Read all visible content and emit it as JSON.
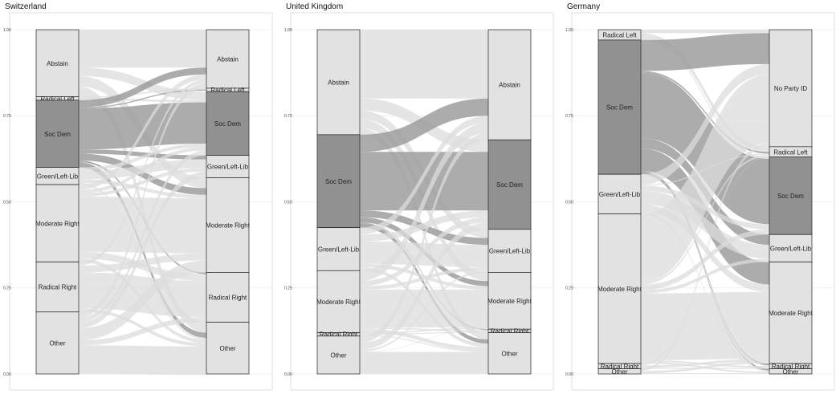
{
  "chart_data": [
    {
      "type": "alluvial",
      "title": "Switzerland",
      "ylim": [
        0,
        1
      ],
      "yticks": [
        "0.00",
        "0.25",
        "0.50",
        "0.75",
        "1.00"
      ],
      "grid": true,
      "left_axis": [
        {
          "label": "Abstain",
          "share": 0.195
        },
        {
          "label": "Radical Left",
          "share": 0.01
        },
        {
          "label": "Soc Dem",
          "share": 0.195
        },
        {
          "label": "Green/Left-Lib",
          "share": 0.05
        },
        {
          "label": "Moderate Right",
          "share": 0.225
        },
        {
          "label": "Radical Right",
          "share": 0.145
        },
        {
          "label": "Other",
          "share": 0.18
        }
      ],
      "right_axis": [
        {
          "label": "Abstain",
          "share": 0.17
        },
        {
          "label": "Radical Left",
          "share": 0.01
        },
        {
          "label": "Soc Dem",
          "share": 0.185
        },
        {
          "label": "Green/Left-Lib",
          "share": 0.065
        },
        {
          "label": "Moderate Right",
          "share": 0.275
        },
        {
          "label": "Radical Right",
          "share": 0.145
        },
        {
          "label": "Other",
          "share": 0.15
        }
      ],
      "flows": [
        {
          "from": "Abstain",
          "to": "Abstain",
          "value": 0.11
        },
        {
          "from": "Abstain",
          "to": "Soc Dem",
          "value": 0.025
        },
        {
          "from": "Abstain",
          "to": "Moderate Right",
          "value": 0.03
        },
        {
          "from": "Abstain",
          "to": "Other",
          "value": 0.03
        },
        {
          "from": "Radical Left",
          "to": "Radical Left",
          "value": 0.004
        },
        {
          "from": "Radical Left",
          "to": "Soc Dem",
          "value": 0.006
        },
        {
          "from": "Soc Dem",
          "to": "Abstain",
          "value": 0.02
        },
        {
          "from": "Soc Dem",
          "to": "Radical Left",
          "value": 0.003
        },
        {
          "from": "Soc Dem",
          "to": "Soc Dem",
          "value": 0.12
        },
        {
          "from": "Soc Dem",
          "to": "Green/Left-Lib",
          "value": 0.012
        },
        {
          "from": "Soc Dem",
          "to": "Moderate Right",
          "value": 0.02
        },
        {
          "from": "Soc Dem",
          "to": "Radical Right",
          "value": 0.005
        },
        {
          "from": "Soc Dem",
          "to": "Other",
          "value": 0.015
        },
        {
          "from": "Green/Left-Lib",
          "to": "Soc Dem",
          "value": 0.01
        },
        {
          "from": "Green/Left-Lib",
          "to": "Green/Left-Lib",
          "value": 0.025
        },
        {
          "from": "Green/Left-Lib",
          "to": "Moderate Right",
          "value": 0.01
        },
        {
          "from": "Green/Left-Lib",
          "to": "Other",
          "value": 0.005
        },
        {
          "from": "Moderate Right",
          "to": "Abstain",
          "value": 0.015
        },
        {
          "from": "Moderate Right",
          "to": "Soc Dem",
          "value": 0.01
        },
        {
          "from": "Moderate Right",
          "to": "Green/Left-Lib",
          "value": 0.01
        },
        {
          "from": "Moderate Right",
          "to": "Moderate Right",
          "value": 0.16
        },
        {
          "from": "Moderate Right",
          "to": "Radical Right",
          "value": 0.02
        },
        {
          "from": "Moderate Right",
          "to": "Other",
          "value": 0.01
        },
        {
          "from": "Radical Right",
          "to": "Abstain",
          "value": 0.01
        },
        {
          "from": "Radical Right",
          "to": "Moderate Right",
          "value": 0.02
        },
        {
          "from": "Radical Right",
          "to": "Radical Right",
          "value": 0.105
        },
        {
          "from": "Radical Right",
          "to": "Other",
          "value": 0.01
        },
        {
          "from": "Other",
          "to": "Abstain",
          "value": 0.015
        },
        {
          "from": "Radical Left",
          "to": "Radical Left",
          "value": 0.0
        },
        {
          "from": "Other",
          "to": "Soc Dem",
          "value": 0.014
        },
        {
          "from": "Other",
          "to": "Green/Left-Lib",
          "value": 0.018
        },
        {
          "from": "Other",
          "to": "Moderate Right",
          "value": 0.035
        },
        {
          "from": "Other",
          "to": "Radical Right",
          "value": 0.015
        },
        {
          "from": "Other",
          "to": "Other",
          "value": 0.083
        }
      ]
    },
    {
      "type": "alluvial",
      "title": "United Kingdom",
      "ylim": [
        0,
        1
      ],
      "yticks": [
        "0.00",
        "0.25",
        "0.50",
        "0.75",
        "1.00"
      ],
      "grid": true,
      "left_axis": [
        {
          "label": "Abstain",
          "share": 0.305
        },
        {
          "label": "Soc Dem",
          "share": 0.27
        },
        {
          "label": "Green/Left-Lib",
          "share": 0.125
        },
        {
          "label": "Moderate Right",
          "share": 0.18
        },
        {
          "label": "Radical Right",
          "share": 0.01
        },
        {
          "label": "Other",
          "share": 0.11
        }
      ],
      "right_axis": [
        {
          "label": "Abstain",
          "share": 0.32
        },
        {
          "label": "Soc Dem",
          "share": 0.26
        },
        {
          "label": "Green/Left-Lib",
          "share": 0.125
        },
        {
          "label": "Moderate Right",
          "share": 0.165
        },
        {
          "label": "Radical Right",
          "share": 0.01
        },
        {
          "label": "Other",
          "share": 0.12
        }
      ],
      "flows": [
        {
          "from": "Abstain",
          "to": "Abstain",
          "value": 0.2
        },
        {
          "from": "Abstain",
          "to": "Soc Dem",
          "value": 0.035
        },
        {
          "from": "Abstain",
          "to": "Green/Left-Lib",
          "value": 0.025
        },
        {
          "from": "Abstain",
          "to": "Moderate Right",
          "value": 0.025
        },
        {
          "from": "Abstain",
          "to": "Other",
          "value": 0.02
        },
        {
          "from": "Soc Dem",
          "to": "Abstain",
          "value": 0.05
        },
        {
          "from": "Soc Dem",
          "to": "Soc Dem",
          "value": 0.17
        },
        {
          "from": "Soc Dem",
          "to": "Green/Left-Lib",
          "value": 0.02
        },
        {
          "from": "Soc Dem",
          "to": "Moderate Right",
          "value": 0.015
        },
        {
          "from": "Soc Dem",
          "to": "Radical Right",
          "value": 0.003
        },
        {
          "from": "Soc Dem",
          "to": "Other",
          "value": 0.012
        },
        {
          "from": "Green/Left-Lib",
          "to": "Abstain",
          "value": 0.02
        },
        {
          "from": "Green/Left-Lib",
          "to": "Soc Dem",
          "value": 0.02
        },
        {
          "from": "Green/Left-Lib",
          "to": "Green/Left-Lib",
          "value": 0.065
        },
        {
          "from": "Green/Left-Lib",
          "to": "Moderate Right",
          "value": 0.01
        },
        {
          "from": "Green/Left-Lib",
          "to": "Other",
          "value": 0.01
        },
        {
          "from": "Moderate Right",
          "to": "Abstain",
          "value": 0.03
        },
        {
          "from": "Moderate Right",
          "to": "Soc Dem",
          "value": 0.015
        },
        {
          "from": "Moderate Right",
          "to": "Green/Left-Lib",
          "value": 0.01
        },
        {
          "from": "Moderate Right",
          "to": "Moderate Right",
          "value": 0.11
        },
        {
          "from": "Moderate Right",
          "to": "Radical Right",
          "value": 0.004
        },
        {
          "from": "Moderate Right",
          "to": "Other",
          "value": 0.011
        },
        {
          "from": "Radical Right",
          "to": "Radical Right",
          "value": 0.003
        },
        {
          "from": "Radical Right",
          "to": "Moderate Right",
          "value": 0.004
        },
        {
          "from": "Radical Right",
          "to": "Other",
          "value": 0.003
        },
        {
          "from": "Other",
          "to": "Abstain",
          "value": 0.02
        },
        {
          "from": "Other",
          "to": "Soc Dem",
          "value": 0.02
        },
        {
          "from": "Other",
          "to": "Green/Left-Lib",
          "value": 0.005
        },
        {
          "from": "Other",
          "to": "Moderate Right",
          "value": 0.001
        },
        {
          "from": "Other",
          "to": "Other",
          "value": 0.064
        }
      ]
    },
    {
      "type": "alluvial",
      "title": "Germany",
      "ylim": [
        0,
        1
      ],
      "yticks": [
        "0.00",
        "0.25",
        "0.50",
        "0.75",
        "1.00"
      ],
      "grid": true,
      "left_axis": [
        {
          "label": "Radical Left",
          "share": 0.03
        },
        {
          "label": "Soc Dem",
          "share": 0.39
        },
        {
          "label": "Green/Left-Lib",
          "share": 0.115
        },
        {
          "label": "Moderate Right",
          "share": 0.435
        },
        {
          "label": "Radical Right",
          "share": 0.015
        },
        {
          "label": "Other",
          "share": 0.015
        }
      ],
      "right_axis": [
        {
          "label": "No Party ID",
          "share": 0.34
        },
        {
          "label": "Radical Left",
          "share": 0.03
        },
        {
          "label": "Soc Dem",
          "share": 0.225
        },
        {
          "label": "Green/Left-Lib",
          "share": 0.08
        },
        {
          "label": "Moderate Right",
          "share": 0.295
        },
        {
          "label": "Radical Right",
          "share": 0.015
        },
        {
          "label": "Other",
          "share": 0.015
        }
      ],
      "flows": [
        {
          "from": "Radical Left",
          "to": "No Party ID",
          "value": 0.01
        },
        {
          "from": "Radical Left",
          "to": "Radical Left",
          "value": 0.015
        },
        {
          "from": "Radical Left",
          "to": "Soc Dem",
          "value": 0.005
        },
        {
          "from": "Soc Dem",
          "to": "No Party ID",
          "value": 0.09
        },
        {
          "from": "Soc Dem",
          "to": "Radical Left",
          "value": 0.005
        },
        {
          "from": "Soc Dem",
          "to": "Soc Dem",
          "value": 0.19
        },
        {
          "from": "Soc Dem",
          "to": "Green/Left-Lib",
          "value": 0.03
        },
        {
          "from": "Soc Dem",
          "to": "Moderate Right",
          "value": 0.065
        },
        {
          "from": "Soc Dem",
          "to": "Radical Right",
          "value": 0.005
        },
        {
          "from": "Soc Dem",
          "to": "Other",
          "value": 0.005
        },
        {
          "from": "Green/Left-Lib",
          "to": "No Party ID",
          "value": 0.03
        },
        {
          "from": "Green/Left-Lib",
          "to": "Radical Left",
          "value": 0.003
        },
        {
          "from": "Green/Left-Lib",
          "to": "Soc Dem",
          "value": 0.015
        },
        {
          "from": "Green/Left-Lib",
          "to": "Green/Left-Lib",
          "value": 0.04
        },
        {
          "from": "Green/Left-Lib",
          "to": "Moderate Right",
          "value": 0.022
        },
        {
          "from": "Green/Left-Lib",
          "to": "Radical Right",
          "value": 0.002
        },
        {
          "from": "Green/Left-Lib",
          "to": "Other",
          "value": 0.003
        },
        {
          "from": "Moderate Right",
          "to": "No Party ID",
          "value": 0.2
        },
        {
          "from": "Moderate Right",
          "to": "Radical Left",
          "value": 0.006
        },
        {
          "from": "Moderate Right",
          "to": "Soc Dem",
          "value": 0.015
        },
        {
          "from": "Moderate Right",
          "to": "Green/Left-Lib",
          "value": 0.01
        },
        {
          "from": "Moderate Right",
          "to": "Moderate Right",
          "value": 0.194
        },
        {
          "from": "Moderate Right",
          "to": "Radical Right",
          "value": 0.005
        },
        {
          "from": "Moderate Right",
          "to": "Other",
          "value": 0.005
        },
        {
          "from": "Radical Right",
          "to": "No Party ID",
          "value": 0.005
        },
        {
          "from": "Radical Right",
          "to": "Radical Right",
          "value": 0.003
        },
        {
          "from": "Radical Right",
          "to": "Moderate Right",
          "value": 0.007
        },
        {
          "from": "Other",
          "to": "No Party ID",
          "value": 0.005
        },
        {
          "from": "Other",
          "to": "Radical Left",
          "value": 0.001
        },
        {
          "from": "Other",
          "to": "Moderate Right",
          "value": 0.007
        },
        {
          "from": "Other",
          "to": "Radical Right",
          "value": 0.0
        },
        {
          "from": "Other",
          "to": "Other",
          "value": 0.002
        }
      ]
    }
  ],
  "colors": {
    "background": "#ffffff",
    "stratum_default": "#e2e2e2",
    "stratum_socdem": "#919191",
    "flow_default": "#dcdcdc",
    "flow_socdem": "#9d9d9d",
    "frame": "#d8d8d8",
    "grid": "#ececec",
    "stroke": "#222222"
  }
}
